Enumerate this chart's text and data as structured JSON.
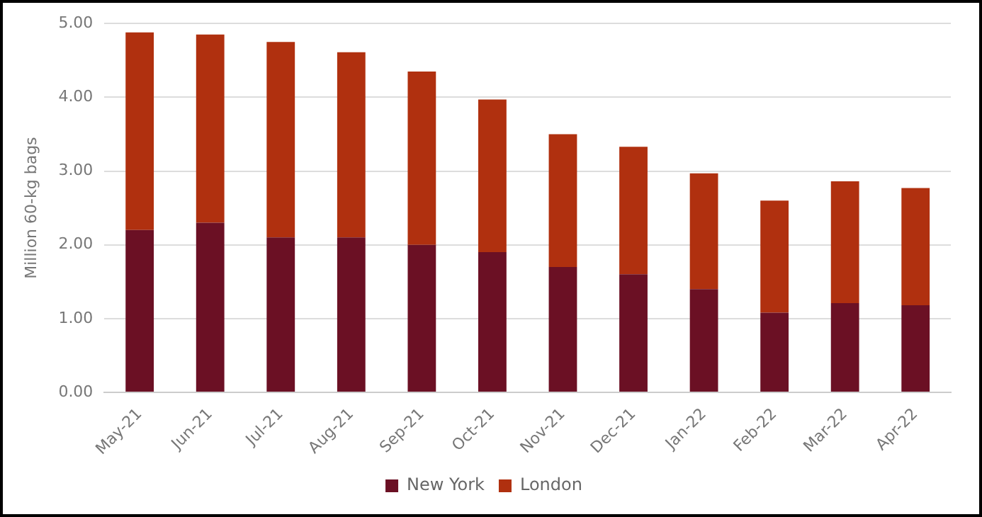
{
  "chart_data": {
    "type": "bar",
    "ylabel": "Million 60-kg bags",
    "stacked": true,
    "categories": [
      "May-21",
      "Jun-21",
      "Jul-21",
      "Aug-21",
      "Sep-21",
      "Oct-21",
      "Nov-21",
      "Dec-21",
      "Jan-22",
      "Feb-22",
      "Mar-22",
      "Apr-22"
    ],
    "series": [
      {
        "name": "New York",
        "color": "#6b1024",
        "values": [
          2.2,
          2.3,
          2.1,
          2.1,
          2.0,
          1.9,
          1.7,
          1.6,
          1.4,
          1.08,
          1.21,
          1.18
        ]
      },
      {
        "name": "London",
        "color": "#b0300f",
        "values": [
          2.68,
          2.55,
          2.65,
          2.51,
          2.35,
          2.07,
          1.8,
          1.73,
          1.57,
          1.52,
          1.65,
          1.59
        ]
      }
    ],
    "ylim": [
      0,
      5
    ],
    "yticks": [
      {
        "value": 0,
        "label": "0.00"
      },
      {
        "value": 1,
        "label": "1.00"
      },
      {
        "value": 2,
        "label": "2.00"
      },
      {
        "value": 3,
        "label": "3.00"
      },
      {
        "value": 4,
        "label": "4.00"
      },
      {
        "value": 5,
        "label": "5.00"
      }
    ],
    "grid": "y",
    "legend": "bottom"
  }
}
